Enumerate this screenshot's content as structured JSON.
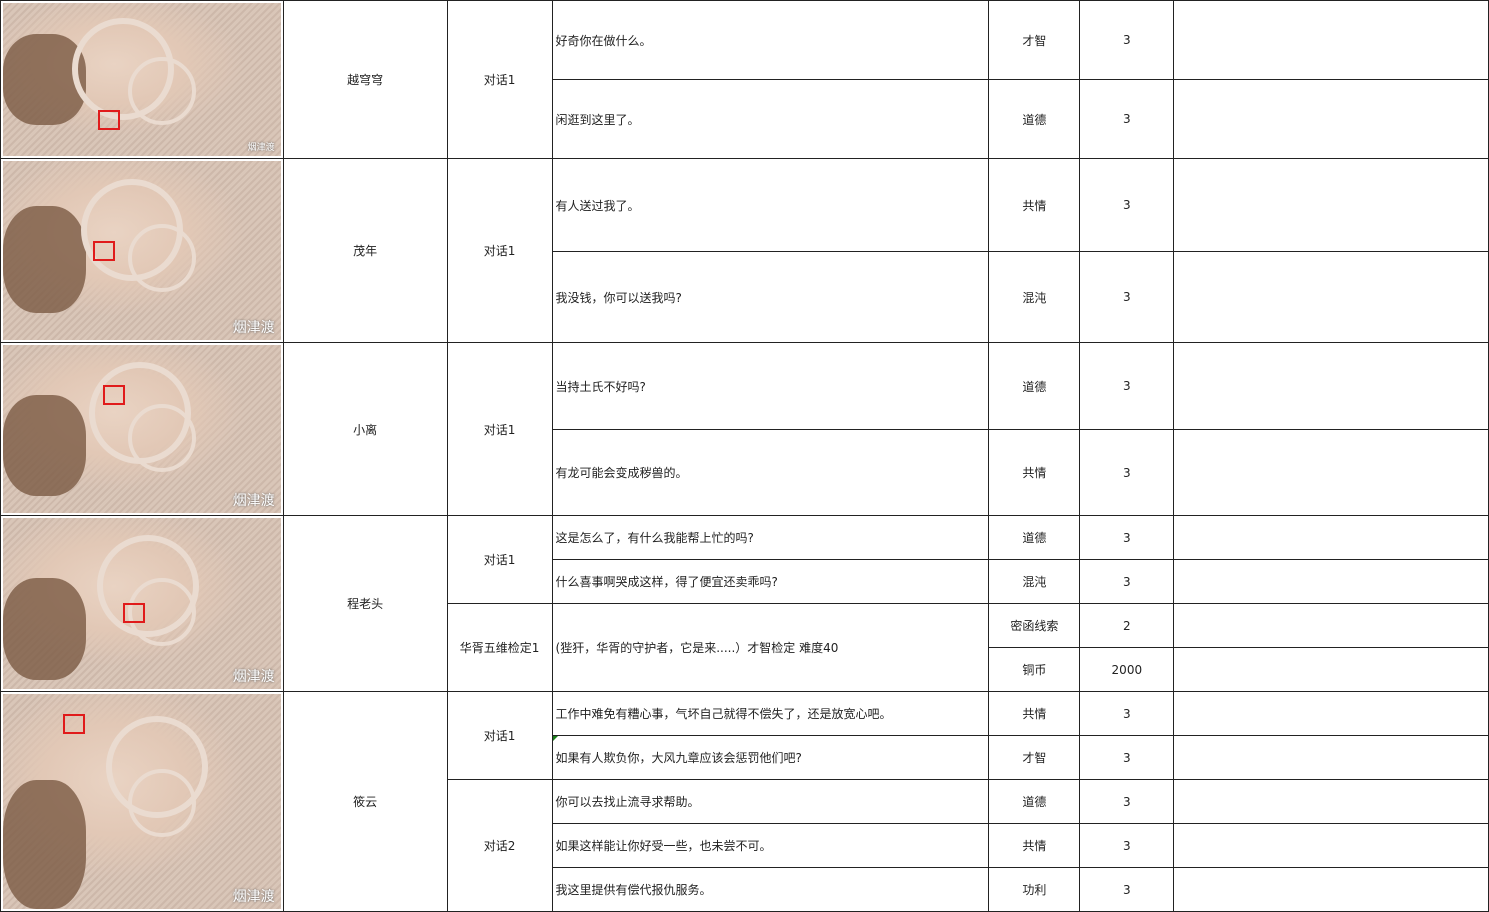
{
  "map_label": "烟津渡",
  "colors": {
    "marker": "#e01b1b",
    "map_bg": "#d3bfb2",
    "comment_flag": "#1a7d1a"
  },
  "rows": [
    {
      "npc": "越穹穹",
      "groups": [
        {
          "type": "对话1",
          "items": [
            {
              "text": "好奇你在做什么。",
              "attr": "才智",
              "value": "3"
            },
            {
              "text": "闲逛到这里了。",
              "attr": "道德",
              "value": "3"
            }
          ]
        }
      ]
    },
    {
      "npc": "茂年",
      "groups": [
        {
          "type": "对话1",
          "items": [
            {
              "text": "有人送过我了。",
              "attr": "共情",
              "value": "3"
            },
            {
              "text": "我没钱，你可以送我吗?",
              "attr": "混沌",
              "value": "3"
            }
          ]
        }
      ]
    },
    {
      "npc": "小离",
      "groups": [
        {
          "type": "对话1",
          "items": [
            {
              "text": "当持土氏不好吗?",
              "attr": "道德",
              "value": "3"
            },
            {
              "text": "有龙可能会变成秽兽的。",
              "attr": "共情",
              "value": "3"
            }
          ]
        }
      ]
    },
    {
      "npc": "程老头",
      "groups": [
        {
          "type": "对话1",
          "items": [
            {
              "text": "这是怎么了，有什么我能帮上忙的吗?",
              "attr": "道德",
              "value": "3"
            },
            {
              "text": "什么喜事啊哭成这样，得了便宜还卖乖吗?",
              "attr": "混沌",
              "value": "3"
            }
          ]
        },
        {
          "type": "华胥五维检定1",
          "merged_text": "(狴犴，华胥的守护者，它是来.....）才智检定 难度40",
          "items": [
            {
              "attr": "密函线索",
              "value": "2"
            },
            {
              "attr": "铜币",
              "value": "2000"
            }
          ]
        }
      ]
    },
    {
      "npc": "筱云",
      "groups": [
        {
          "type": "对话1",
          "items": [
            {
              "text": "工作中难免有糟心事，气坏自己就得不偿失了，还是放宽心吧。",
              "attr": "共情",
              "value": "3"
            },
            {
              "text": "如果有人欺负你，大风九章应该会惩罚他们吧?",
              "attr": "才智",
              "value": "3",
              "flag": true
            }
          ]
        },
        {
          "type": "对话2",
          "items": [
            {
              "text": "你可以去找止流寻求帮助。",
              "attr": "道德",
              "value": "3"
            },
            {
              "text": "如果这样能让你好受一些，也未尝不可。",
              "attr": "共情",
              "value": "3"
            },
            {
              "text": "我这里提供有偿代报仇服务。",
              "attr": "功利",
              "value": "3"
            }
          ]
        }
      ]
    }
  ]
}
